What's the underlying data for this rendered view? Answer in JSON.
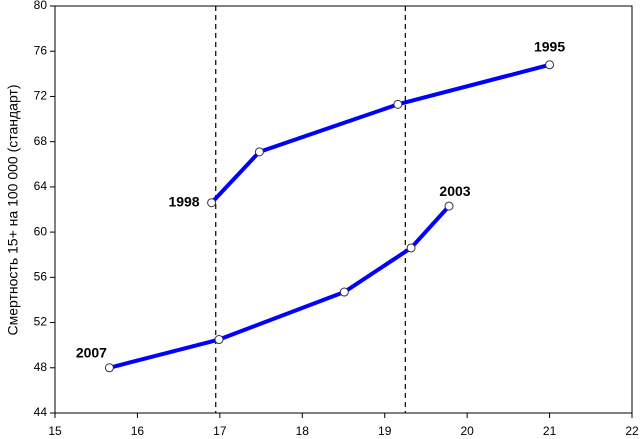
{
  "chart_data": {
    "type": "line",
    "y_label": "Смертность 15+ на 100 000 (стандарт)",
    "xlim": [
      15,
      22
    ],
    "xticks": [
      15,
      16,
      17,
      18,
      19,
      20,
      21,
      22
    ],
    "ylim": [
      44,
      80
    ],
    "yticks": [
      44,
      48,
      52,
      56,
      60,
      64,
      68,
      72,
      76,
      80
    ],
    "vlines": [
      16.95,
      19.25
    ],
    "series": [
      {
        "color": "#0000ff",
        "x": [
          16.9,
          17.48,
          19.16,
          21.0
        ],
        "values": [
          62.6,
          67.1,
          71.3,
          74.8
        ],
        "point_labels": [
          "1998",
          null,
          null,
          "1995"
        ]
      },
      {
        "color": "#0000ff",
        "x": [
          15.66,
          16.99,
          18.51,
          19.32,
          19.78
        ],
        "values": [
          48.0,
          50.5,
          54.7,
          58.6,
          62.3
        ],
        "point_labels": [
          "2007",
          null,
          null,
          null,
          "2003"
        ]
      }
    ]
  }
}
